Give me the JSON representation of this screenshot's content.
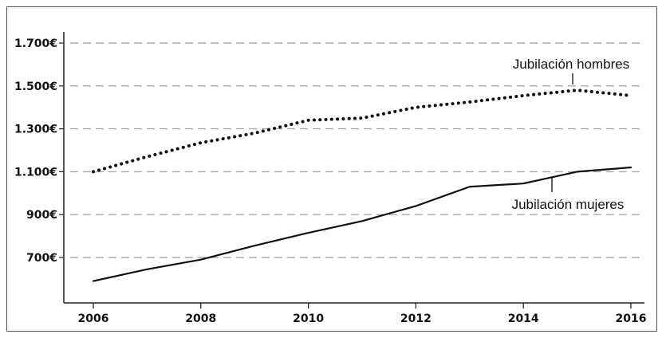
{
  "chart_data": {
    "type": "line",
    "title": "",
    "xlabel": "",
    "ylabel": "",
    "xlim": [
      2006,
      2016
    ],
    "ylim": [
      500,
      1800
    ],
    "x_ticks": [
      2006,
      2008,
      2010,
      2012,
      2014,
      2016
    ],
    "x_tick_labels": [
      "2006",
      "2008",
      "2010",
      "2012",
      "2014",
      "2016"
    ],
    "y_ticks": [
      700,
      900,
      1100,
      1300,
      1500,
      1700
    ],
    "y_tick_labels": [
      "700€",
      "900€",
      "1.100€",
      "1.300€",
      "1.500€",
      "1.700€"
    ],
    "grid": "horizontal-dashed",
    "legend": "none",
    "x": [
      2006,
      2007,
      2008,
      2009,
      2010,
      2011,
      2012,
      2013,
      2014,
      2015,
      2016
    ],
    "series": [
      {
        "name": "Jubilación hombres",
        "style": "dotted",
        "values": [
          1100,
          1170,
          1235,
          1280,
          1340,
          1350,
          1400,
          1425,
          1455,
          1480,
          1455
        ]
      },
      {
        "name": "Jubilación mujeres",
        "style": "solid",
        "values": [
          590,
          645,
          690,
          755,
          815,
          870,
          940,
          1030,
          1045,
          1100,
          1120
        ]
      }
    ],
    "annotations": [
      {
        "text": "Jubilación hombres",
        "series": 0,
        "x": 2015
      },
      {
        "text": "Jubilación mujeres",
        "series": 1,
        "x": 2014.5
      }
    ]
  },
  "colors": {
    "line": "#111111",
    "grid": "#aaaaaa",
    "axis": "#222222"
  }
}
